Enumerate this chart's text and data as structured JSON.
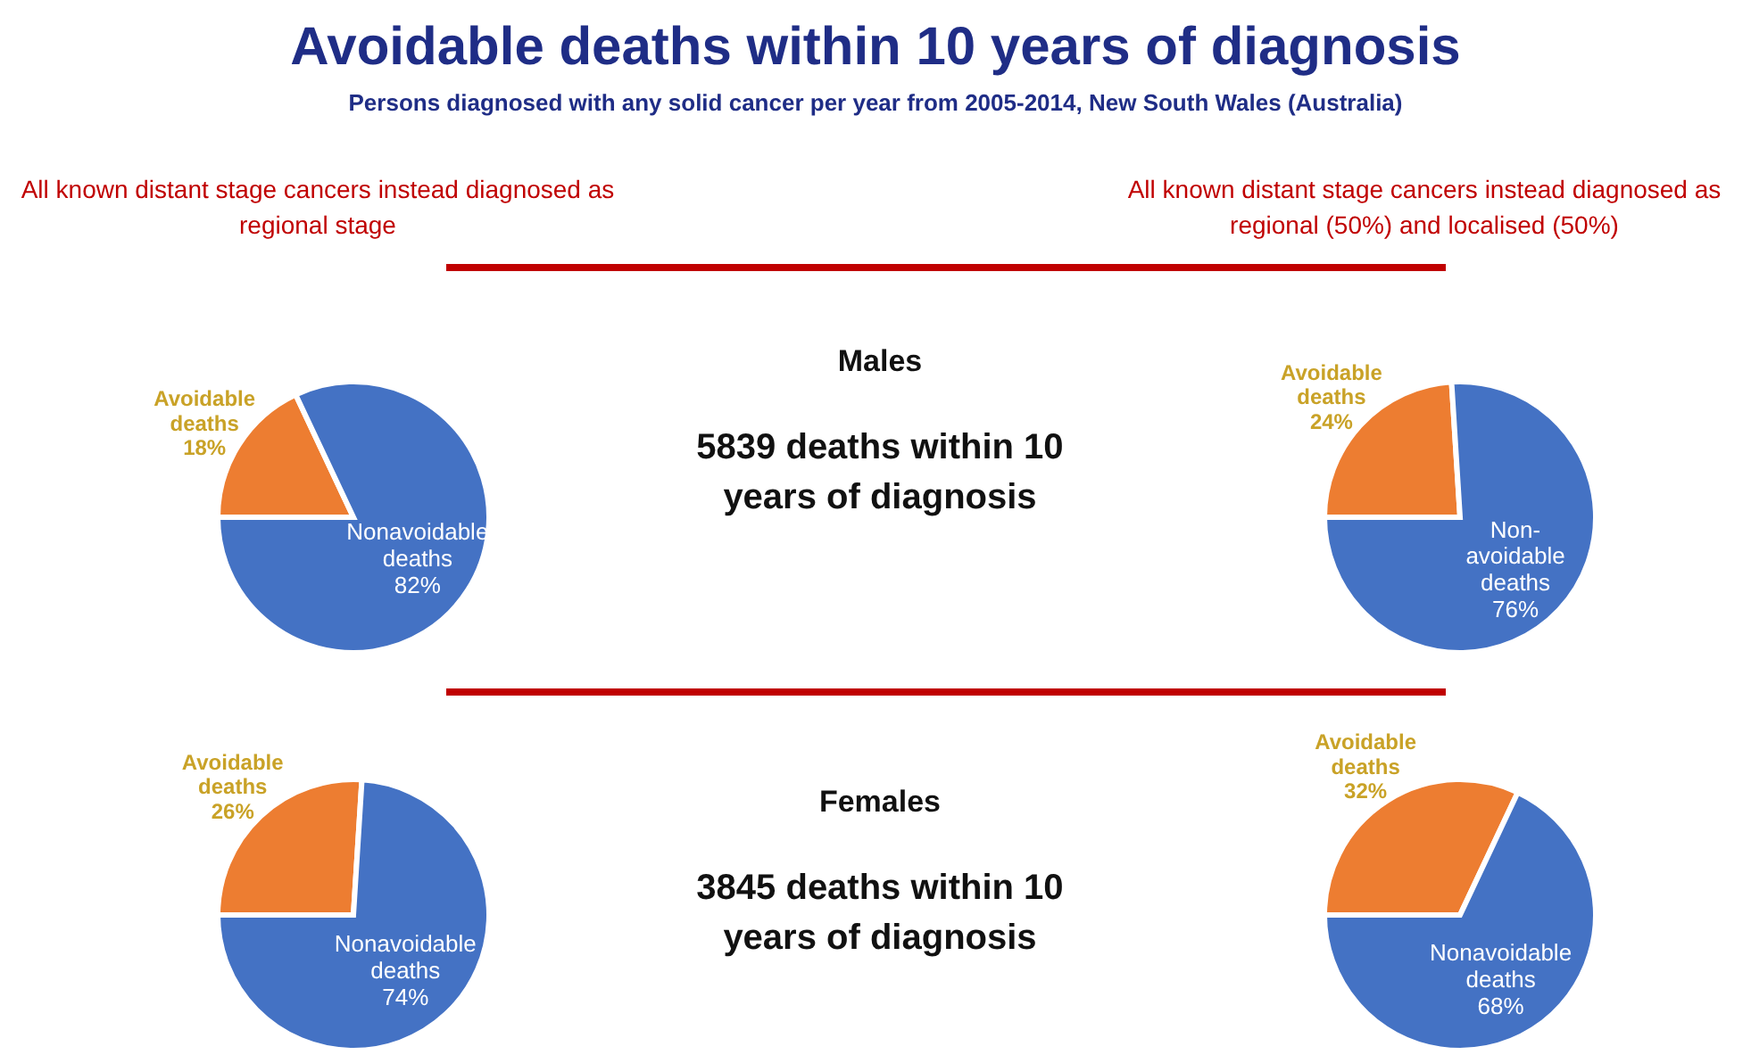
{
  "chart_data": [
    {
      "type": "other",
      "title": "Avoidable deaths within 10 years of diagnosis",
      "subtitle": "Persons diagnosed with any solid cancer per year from 2005-2014, New South Wales (Australia)"
    },
    {
      "type": "pie",
      "title": "All known distant stage cancers instead diagnosed as regional stage",
      "categories": [
        "Avoidable deaths",
        "Nonavoidable deaths"
      ],
      "values": [
        18,
        82
      ],
      "value_labels": [
        "18%",
        "82%"
      ],
      "colors": [
        "#ed7d31",
        "#4472c4"
      ]
    },
    {
      "type": "other",
      "title": "Males",
      "annotations": [
        "5839 deaths within 10 years of diagnosis"
      ]
    },
    {
      "type": "pie",
      "title": "All known distant stage cancers instead diagnosed as regional (50%) and localised (50%)",
      "categories": [
        "Avoidable deaths",
        "Non-avoidable deaths"
      ],
      "values": [
        24,
        76
      ],
      "value_labels": [
        "24%",
        "76%"
      ],
      "colors": [
        "#ed7d31",
        "#4472c4"
      ]
    },
    {
      "type": "pie",
      "categories": [
        "Avoidable deaths",
        "Nonavoidable deaths"
      ],
      "values": [
        26,
        74
      ],
      "value_labels": [
        "26%",
        "74%"
      ],
      "colors": [
        "#ed7d31",
        "#4472c4"
      ]
    },
    {
      "type": "other",
      "title": "Females",
      "annotations": [
        "3845 deaths within 10 years of diagnosis"
      ]
    },
    {
      "type": "pie",
      "categories": [
        "Avoidable deaths",
        "Nonavoidable deaths"
      ],
      "values": [
        32,
        68
      ],
      "value_labels": [
        "32%",
        "68%"
      ],
      "colors": [
        "#ed7d31",
        "#4472c4"
      ]
    }
  ]
}
